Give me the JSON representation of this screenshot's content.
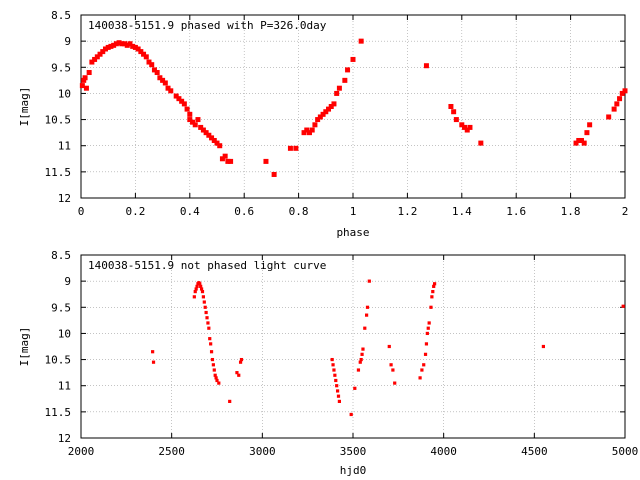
{
  "chart_data": [
    {
      "type": "scatter",
      "title": "140038-5151.9 phased with P=326.0day",
      "xlabel": "phase",
      "ylabel": "I[mag]",
      "xlim": [
        0,
        2
      ],
      "ylim": [
        12,
        8.5
      ],
      "y_inverted": true,
      "grid": true,
      "marker_color": "#ff0000",
      "xticks": [
        "0",
        "0.2",
        "0.4",
        "0.6",
        "0.8",
        "1",
        "1.2",
        "1.4",
        "1.6",
        "1.8",
        "2"
      ],
      "yticks": [
        "8.5",
        "9",
        "9.5",
        "10",
        "10.5",
        "11",
        "11.5",
        "12"
      ],
      "series": [
        {
          "points": [
            [
              0.005,
              9.85
            ],
            [
              0.01,
              9.75
            ],
            [
              0.015,
              9.7
            ],
            [
              0.02,
              9.9
            ],
            [
              0.03,
              9.6
            ],
            [
              0.04,
              9.4
            ],
            [
              0.05,
              9.35
            ],
            [
              0.06,
              9.3
            ],
            [
              0.07,
              9.25
            ],
            [
              0.08,
              9.2
            ],
            [
              0.09,
              9.15
            ],
            [
              0.1,
              9.12
            ],
            [
              0.11,
              9.1
            ],
            [
              0.12,
              9.08
            ],
            [
              0.13,
              9.05
            ],
            [
              0.14,
              9.03
            ],
            [
              0.15,
              9.05
            ],
            [
              0.16,
              9.05
            ],
            [
              0.17,
              9.08
            ],
            [
              0.18,
              9.05
            ],
            [
              0.19,
              9.1
            ],
            [
              0.2,
              9.12
            ],
            [
              0.21,
              9.15
            ],
            [
              0.22,
              9.2
            ],
            [
              0.23,
              9.25
            ],
            [
              0.24,
              9.3
            ],
            [
              0.25,
              9.4
            ],
            [
              0.26,
              9.45
            ],
            [
              0.27,
              9.55
            ],
            [
              0.28,
              9.6
            ],
            [
              0.29,
              9.7
            ],
            [
              0.3,
              9.75
            ],
            [
              0.31,
              9.8
            ],
            [
              0.32,
              9.9
            ],
            [
              0.33,
              9.95
            ],
            [
              0.35,
              10.05
            ],
            [
              0.36,
              10.1
            ],
            [
              0.37,
              10.15
            ],
            [
              0.38,
              10.2
            ],
            [
              0.39,
              10.3
            ],
            [
              0.4,
              10.4
            ],
            [
              0.4,
              10.5
            ],
            [
              0.41,
              10.55
            ],
            [
              0.42,
              10.6
            ],
            [
              0.43,
              10.5
            ],
            [
              0.44,
              10.65
            ],
            [
              0.45,
              10.7
            ],
            [
              0.46,
              10.75
            ],
            [
              0.47,
              10.8
            ],
            [
              0.48,
              10.85
            ],
            [
              0.49,
              10.9
            ],
            [
              0.5,
              10.95
            ],
            [
              0.51,
              11.0
            ],
            [
              0.52,
              11.25
            ],
            [
              0.53,
              11.2
            ],
            [
              0.54,
              11.3
            ],
            [
              0.55,
              11.3
            ],
            [
              0.68,
              11.3
            ],
            [
              0.71,
              11.55
            ],
            [
              0.77,
              11.05
            ],
            [
              0.79,
              11.05
            ],
            [
              0.82,
              10.75
            ],
            [
              0.83,
              10.7
            ],
            [
              0.84,
              10.75
            ],
            [
              0.85,
              10.7
            ],
            [
              0.86,
              10.6
            ],
            [
              0.87,
              10.5
            ],
            [
              0.88,
              10.45
            ],
            [
              0.89,
              10.4
            ],
            [
              0.9,
              10.35
            ],
            [
              0.91,
              10.3
            ],
            [
              0.92,
              10.25
            ],
            [
              0.93,
              10.2
            ],
            [
              0.94,
              10.0
            ],
            [
              0.95,
              9.9
            ],
            [
              0.97,
              9.75
            ],
            [
              0.98,
              9.55
            ],
            [
              1.0,
              9.35
            ],
            [
              1.03,
              9.0
            ],
            [
              1.27,
              9.47
            ],
            [
              1.36,
              10.25
            ],
            [
              1.37,
              10.35
            ],
            [
              1.38,
              10.5
            ],
            [
              1.4,
              10.6
            ],
            [
              1.41,
              10.65
            ],
            [
              1.42,
              10.7
            ],
            [
              1.43,
              10.65
            ],
            [
              1.47,
              10.95
            ],
            [
              1.82,
              10.95
            ],
            [
              1.83,
              10.9
            ],
            [
              1.84,
              10.9
            ],
            [
              1.85,
              10.95
            ],
            [
              1.86,
              10.75
            ],
            [
              1.87,
              10.6
            ],
            [
              1.94,
              10.45
            ],
            [
              1.96,
              10.3
            ],
            [
              1.97,
              10.2
            ],
            [
              1.98,
              10.1
            ],
            [
              1.99,
              10.0
            ],
            [
              2.0,
              9.95
            ]
          ]
        }
      ]
    },
    {
      "type": "scatter",
      "title": "140038-5151.9 not phased light curve",
      "xlabel": "hjd0",
      "ylabel": "I[mag]",
      "xlim": [
        2000,
        5000
      ],
      "ylim": [
        12,
        8.5
      ],
      "y_inverted": true,
      "grid": true,
      "marker_color": "#ff0000",
      "xticks": [
        "2000",
        "2500",
        "3000",
        "3500",
        "4000",
        "4500",
        "5000"
      ],
      "yticks": [
        "8.5",
        "9",
        "9.5",
        "10",
        "10.5",
        "11",
        "11.5",
        "12"
      ],
      "series": [
        {
          "points": [
            [
              2395,
              10.35
            ],
            [
              2400,
              10.55
            ],
            [
              2625,
              9.3
            ],
            [
              2630,
              9.2
            ],
            [
              2635,
              9.15
            ],
            [
              2640,
              9.1
            ],
            [
              2645,
              9.05
            ],
            [
              2650,
              9.03
            ],
            [
              2655,
              9.05
            ],
            [
              2660,
              9.1
            ],
            [
              2665,
              9.15
            ],
            [
              2670,
              9.2
            ],
            [
              2675,
              9.3
            ],
            [
              2680,
              9.4
            ],
            [
              2685,
              9.5
            ],
            [
              2690,
              9.6
            ],
            [
              2695,
              9.7
            ],
            [
              2700,
              9.8
            ],
            [
              2705,
              9.9
            ],
            [
              2710,
              10.1
            ],
            [
              2715,
              10.2
            ],
            [
              2720,
              10.35
            ],
            [
              2725,
              10.5
            ],
            [
              2730,
              10.6
            ],
            [
              2735,
              10.7
            ],
            [
              2740,
              10.8
            ],
            [
              2745,
              10.85
            ],
            [
              2750,
              10.9
            ],
            [
              2760,
              10.95
            ],
            [
              2820,
              11.3
            ],
            [
              2860,
              10.75
            ],
            [
              2870,
              10.8
            ],
            [
              2880,
              10.55
            ],
            [
              2885,
              10.5
            ],
            [
              3385,
              10.5
            ],
            [
              3390,
              10.6
            ],
            [
              3395,
              10.7
            ],
            [
              3400,
              10.8
            ],
            [
              3405,
              10.9
            ],
            [
              3410,
              11.0
            ],
            [
              3415,
              11.1
            ],
            [
              3420,
              11.2
            ],
            [
              3425,
              11.3
            ],
            [
              3490,
              11.55
            ],
            [
              3510,
              11.05
            ],
            [
              3530,
              10.7
            ],
            [
              3540,
              10.55
            ],
            [
              3545,
              10.5
            ],
            [
              3550,
              10.4
            ],
            [
              3555,
              10.3
            ],
            [
              3565,
              9.9
            ],
            [
              3575,
              9.65
            ],
            [
              3580,
              9.5
            ],
            [
              3590,
              9.0
            ],
            [
              3700,
              10.25
            ],
            [
              3710,
              10.6
            ],
            [
              3720,
              10.7
            ],
            [
              3730,
              10.95
            ],
            [
              3870,
              10.85
            ],
            [
              3880,
              10.7
            ],
            [
              3890,
              10.6
            ],
            [
              3900,
              10.4
            ],
            [
              3905,
              10.2
            ],
            [
              3910,
              10.0
            ],
            [
              3915,
              9.9
            ],
            [
              3920,
              9.8
            ],
            [
              3930,
              9.5
            ],
            [
              3935,
              9.3
            ],
            [
              3940,
              9.2
            ],
            [
              3945,
              9.1
            ],
            [
              3950,
              9.05
            ],
            [
              4550,
              10.25
            ],
            [
              4990,
              9.48
            ]
          ]
        }
      ]
    }
  ]
}
